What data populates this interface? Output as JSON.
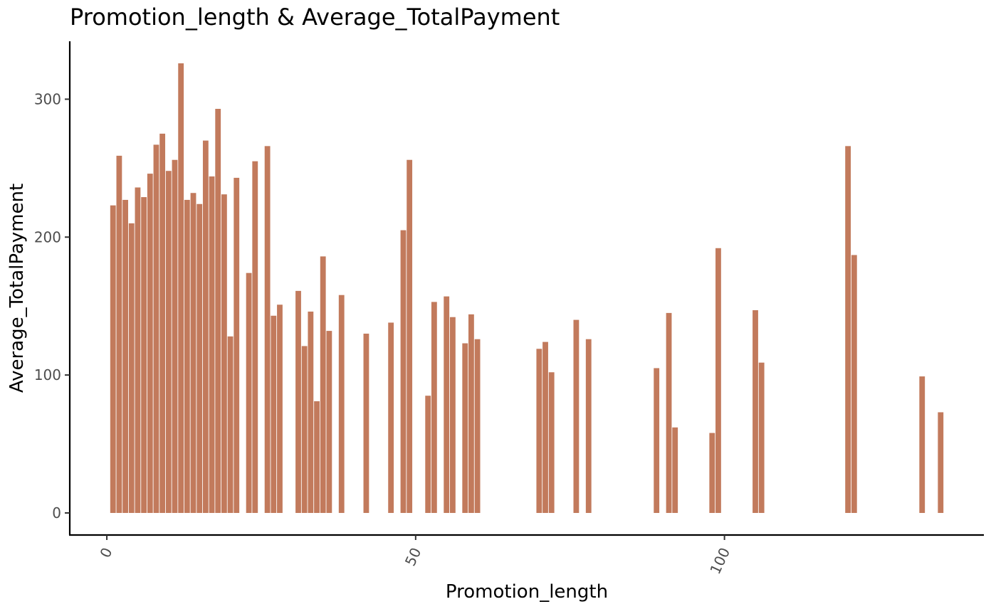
{
  "chart_data": {
    "type": "bar",
    "title": "Promotion_length & Average_TotalPayment",
    "xlabel": "Promotion_length",
    "ylabel": "Average_TotalPayment",
    "xlim": [
      -6,
      142
    ],
    "ylim": [
      -16,
      342
    ],
    "xticks": [
      0,
      50,
      100
    ],
    "yticks": [
      0,
      100,
      200,
      300
    ],
    "bar_color": "#C27A5C",
    "x": [
      1,
      2,
      3,
      4,
      5,
      6,
      7,
      8,
      9,
      10,
      11,
      12,
      13,
      14,
      15,
      16,
      17,
      18,
      19,
      20,
      21,
      23,
      24,
      26,
      27,
      28,
      31,
      32,
      33,
      34,
      35,
      36,
      38,
      42,
      46,
      48,
      49,
      52,
      53,
      55,
      56,
      58,
      59,
      60,
      70,
      71,
      72,
      76,
      78,
      89,
      91,
      92,
      98,
      99,
      105,
      106,
      120,
      121,
      132,
      135
    ],
    "values": [
      223,
      259,
      227,
      210,
      236,
      229,
      246,
      267,
      275,
      248,
      256,
      326,
      227,
      232,
      224,
      270,
      244,
      293,
      231,
      128,
      243,
      174,
      255,
      266,
      143,
      151,
      161,
      121,
      146,
      81,
      186,
      132,
      158,
      130,
      138,
      205,
      256,
      85,
      153,
      157,
      142,
      123,
      144,
      126,
      119,
      124,
      102,
      140,
      126,
      105,
      145,
      62,
      58,
      192,
      147,
      109,
      266,
      187,
      99,
      73
    ]
  }
}
